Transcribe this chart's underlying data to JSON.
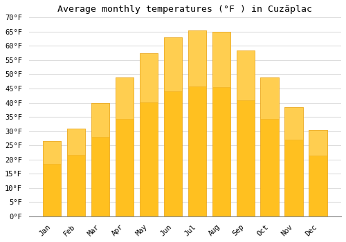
{
  "title": "Average monthly temperatures (°F ) in Cuzăplac",
  "months": [
    "Jan",
    "Feb",
    "Mar",
    "Apr",
    "May",
    "Jun",
    "Jul",
    "Aug",
    "Sep",
    "Oct",
    "Nov",
    "Dec"
  ],
  "values": [
    26.5,
    31.0,
    40.0,
    49.0,
    57.5,
    63.0,
    65.5,
    65.0,
    58.5,
    49.0,
    38.5,
    30.5
  ],
  "bar_color": "#FFC020",
  "bar_edge_color": "#E8A010",
  "background_color": "#FFFFFF",
  "grid_color": "#DDDDDD",
  "ylim": [
    0,
    70
  ],
  "yticks": [
    0,
    5,
    10,
    15,
    20,
    25,
    30,
    35,
    40,
    45,
    50,
    55,
    60,
    65,
    70
  ],
  "ylabel_suffix": "°F",
  "title_fontsize": 9.5,
  "tick_fontsize": 7.5,
  "font_family": "monospace"
}
